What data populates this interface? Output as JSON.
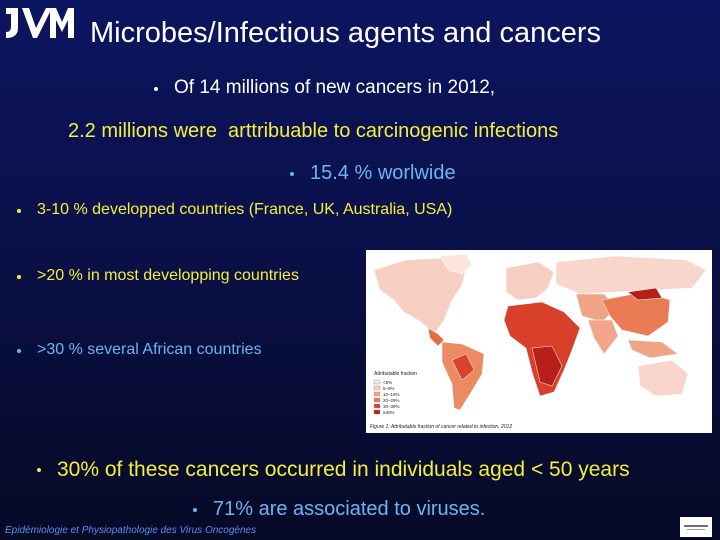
{
  "slide": {
    "title": "Microbes/Infectious agents and cancers",
    "lines": [
      "Of 14 millions of new cancers in 2012,",
      "2.2 millions were  arttribuable to carcinogenic infections",
      "15.4 % worlwide",
      "3-10 % developped countries (France, UK, Australia, USA)",
      ">20 % in most developping countries",
      ">30 % several African countries",
      "30% of these cancers occurred in individuals aged < 50 years",
      "71% are associated to viruses."
    ],
    "figure": {
      "legend_title": "Attributable fraction",
      "legend": [
        "<5%",
        "5–9%",
        "10–19%",
        "20–29%",
        "30–39%",
        "≥40%"
      ],
      "caption": "Figure 1: Attributable fraction of cancer related to infection, 2012"
    },
    "footer": "Epidémiologie et Physiopathologie des Virus Oncogènes"
  }
}
